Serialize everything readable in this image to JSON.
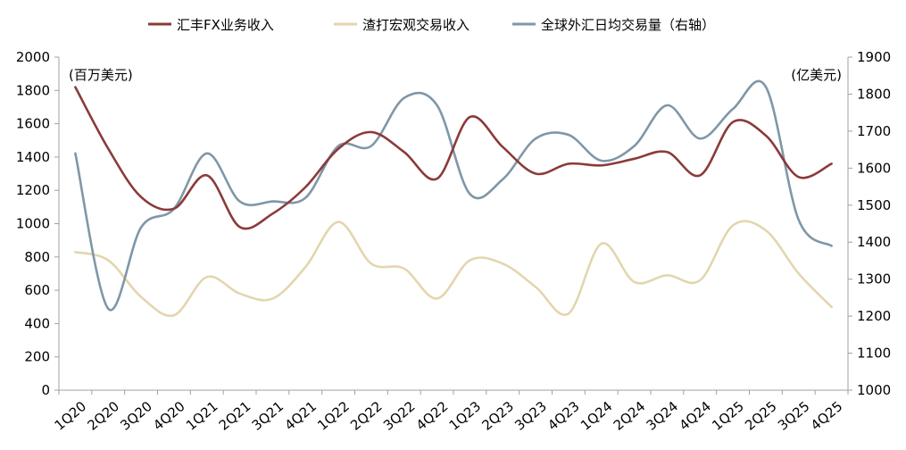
{
  "chart_data": {
    "type": "line",
    "categories": [
      "1Q20",
      "2Q20",
      "3Q20",
      "4Q20",
      "1Q21",
      "2Q21",
      "3Q21",
      "4Q21",
      "1Q22",
      "2Q22",
      "3Q22",
      "4Q22",
      "1Q23",
      "2Q23",
      "3Q23",
      "4Q23",
      "1Q24",
      "2Q24",
      "3Q24",
      "4Q24",
      "1Q25",
      "2Q25",
      "3Q25",
      "4Q25"
    ],
    "left_axis": {
      "unit_label": "(百万美元)",
      "ylim": [
        0,
        2000
      ],
      "ticks": [
        0,
        200,
        400,
        600,
        800,
        1000,
        1200,
        1400,
        1600,
        1800,
        2000
      ]
    },
    "right_axis": {
      "unit_label": "(亿美元)",
      "ylim": [
        1000,
        1900
      ],
      "ticks": [
        1000,
        1100,
        1200,
        1300,
        1400,
        1500,
        1600,
        1700,
        1800,
        1900
      ]
    },
    "series": [
      {
        "name": "汇丰FX业务收入",
        "axis": "left",
        "color": "#8B3A3A",
        "values": [
          1820,
          1450,
          1160,
          1090,
          1290,
          980,
          1060,
          1220,
          1450,
          1550,
          1430,
          1270,
          1640,
          1460,
          1300,
          1360,
          1350,
          1390,
          1430,
          1290,
          1610,
          1530,
          1280,
          1360
        ]
      },
      {
        "name": "渣打宏观交易收入",
        "axis": "left",
        "color": "#E3D6AE",
        "values": [
          830,
          780,
          560,
          450,
          680,
          580,
          550,
          740,
          1010,
          760,
          730,
          550,
          780,
          760,
          620,
          460,
          880,
          650,
          690,
          660,
          990,
          960,
          700,
          500
        ]
      },
      {
        "name": "全球外汇日均交易量（右轴）",
        "axis": "right",
        "color": "#7F97A7",
        "values": [
          1640,
          1220,
          1440,
          1490,
          1640,
          1510,
          1510,
          1520,
          1660,
          1660,
          1790,
          1770,
          1530,
          1570,
          1680,
          1690,
          1620,
          1660,
          1770,
          1680,
          1760,
          1820,
          1460,
          1390
        ]
      }
    ],
    "legend_position": "top-center",
    "grid": false
  }
}
